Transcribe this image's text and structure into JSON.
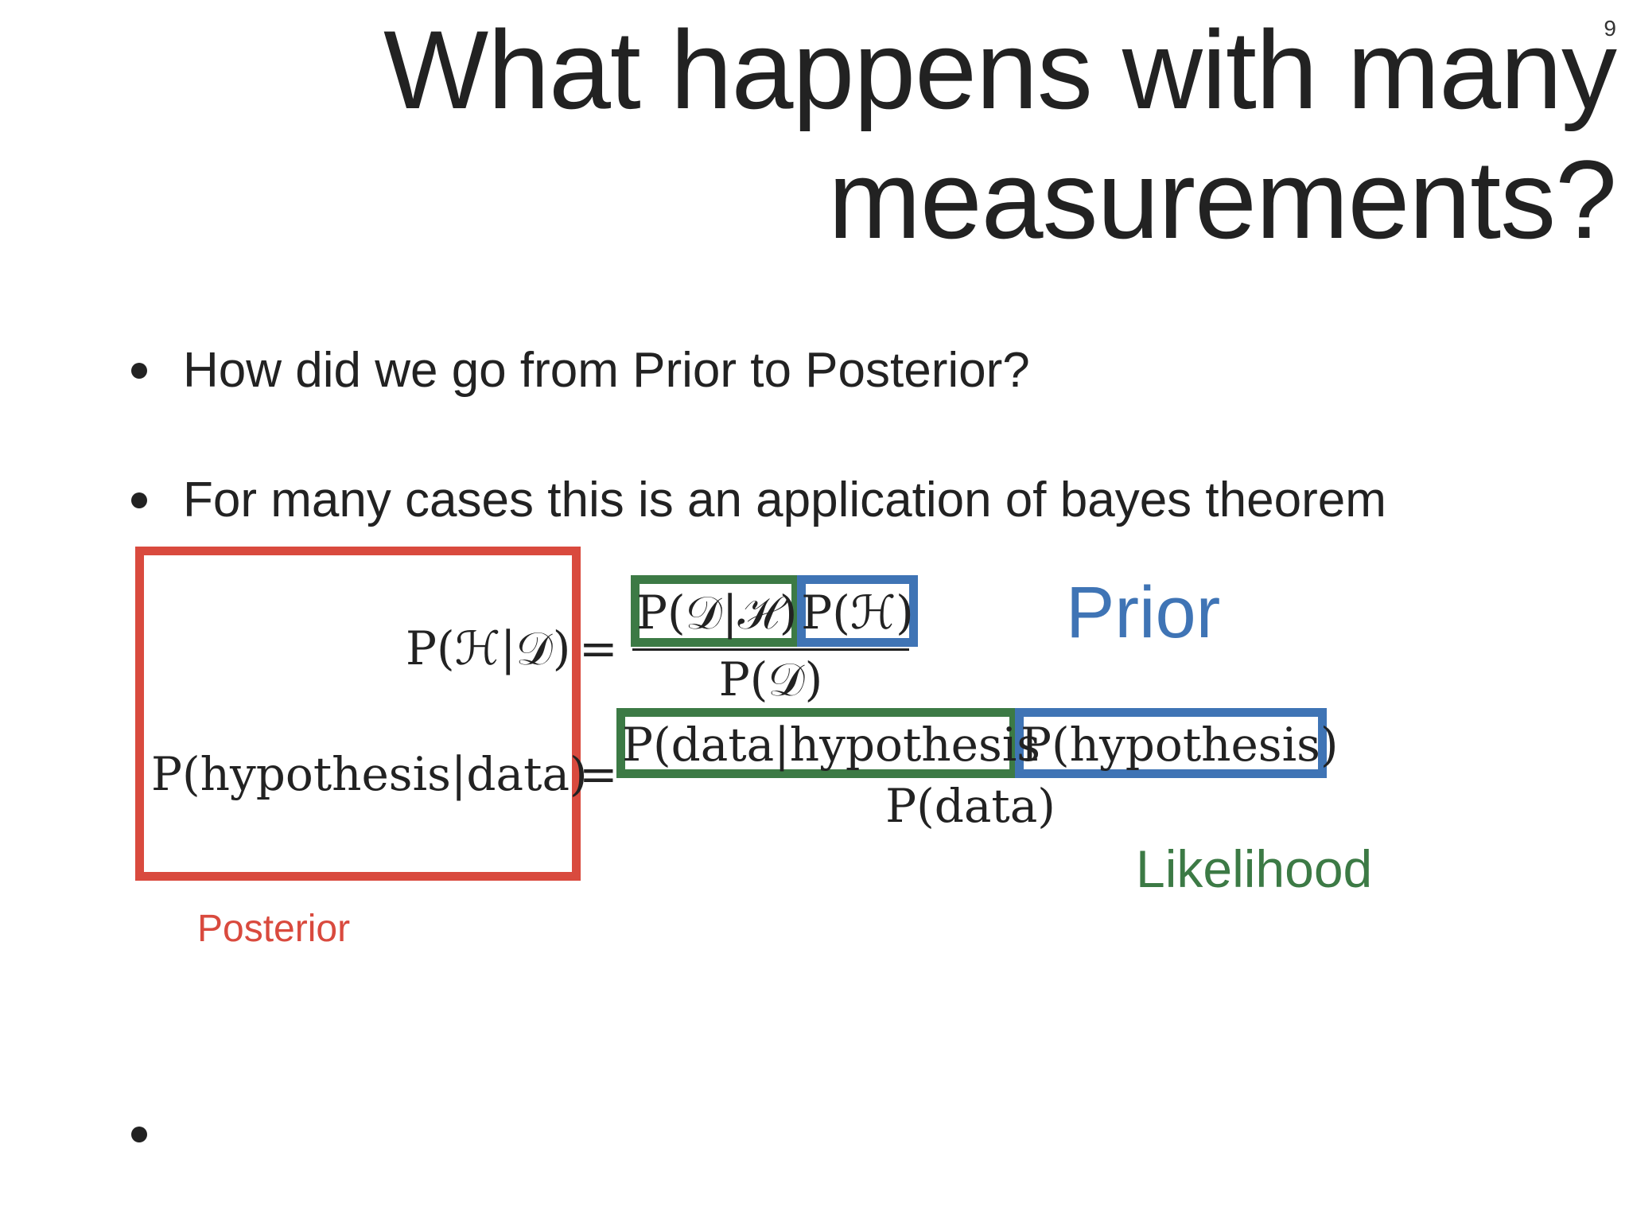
{
  "slide": {
    "number": "9",
    "title": "What happens with many measurements?"
  },
  "bullets": [
    "How did we go from Prior to Posterior?",
    "For many cases this is an application of bayes theorem",
    ""
  ],
  "equations": {
    "symbolic": {
      "lhs": "P(ℋ|𝒟)",
      "eq": "=",
      "likelihood": "P(𝒟|ℋ)",
      "prior": "P(ℋ)",
      "denominator": "P(𝒟)"
    },
    "worded": {
      "lhs": "P(hypothesis|data)",
      "eq": "=",
      "likelihood": "P(data|hypothesis",
      "prior": "P(hypothesis)",
      "denominator": "P(data)"
    }
  },
  "labels": {
    "prior": "Prior",
    "likelihood": "Likelihood",
    "posterior": "Posterior"
  },
  "colors": {
    "posterior": "#d94a3e",
    "likelihood": "#3c7a45",
    "prior": "#3f74b5",
    "text": "#222222"
  }
}
